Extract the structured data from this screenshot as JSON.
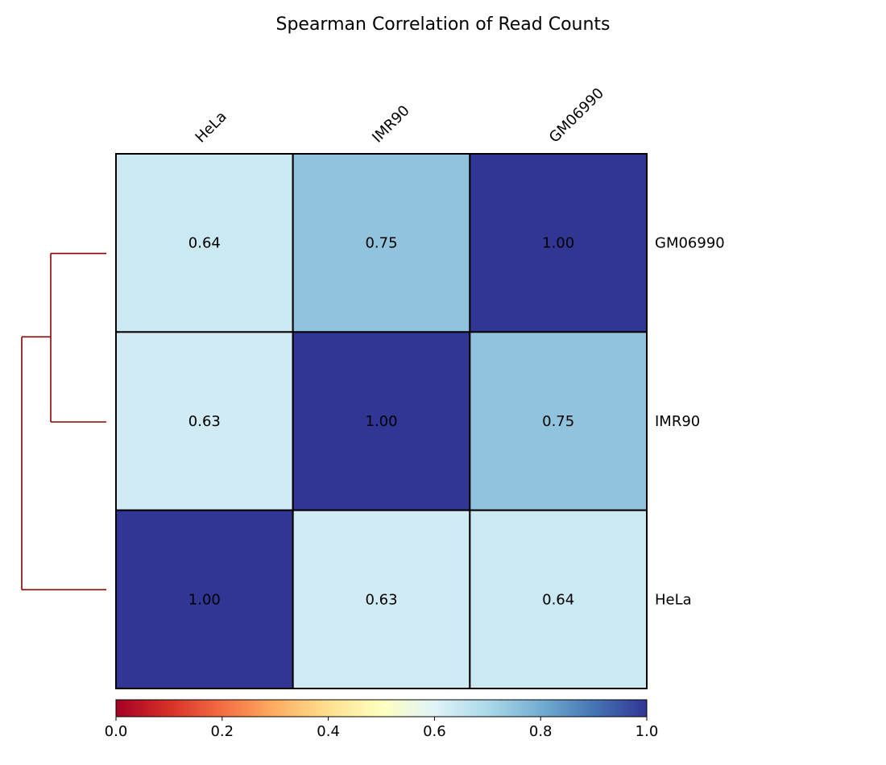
{
  "chart_data": {
    "type": "heatmap",
    "title": "Spearman Correlation of Read Counts",
    "columns": [
      "HeLa",
      "IMR90",
      "GM06990"
    ],
    "rows": [
      "GM06990",
      "IMR90",
      "HeLa"
    ],
    "values": [
      [
        0.64,
        0.75,
        1.0
      ],
      [
        0.63,
        1.0,
        0.75
      ],
      [
        1.0,
        0.63,
        0.64
      ]
    ],
    "value_labels": [
      [
        "0.64",
        "0.75",
        "1.00"
      ],
      [
        "0.63",
        "1.00",
        "0.75"
      ],
      [
        "1.00",
        "0.63",
        "0.64"
      ]
    ],
    "colorbar": {
      "colormap": "RdYlBu",
      "range": [
        0,
        1
      ],
      "ticks": [
        "0.0",
        "0.2",
        "0.4",
        "0.6",
        "0.8",
        "1.0"
      ],
      "placement": "bottom"
    },
    "dendrogram": {
      "side": "left",
      "color": "#8b0000",
      "merges": [
        {
          "join": [
            "GM06990",
            "IMR90"
          ]
        },
        {
          "join": [
            "cluster(GM06990,IMR90)",
            "HeLa"
          ]
        }
      ]
    },
    "cell_border_color": "#000000"
  }
}
